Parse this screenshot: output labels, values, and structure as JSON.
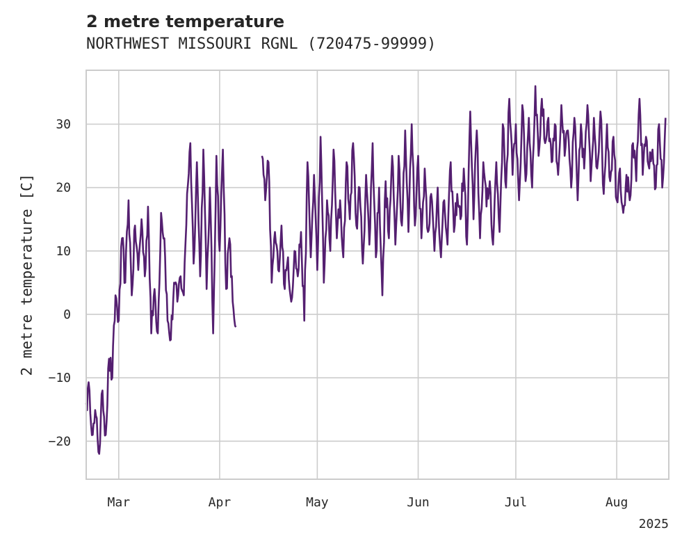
{
  "chart_data": {
    "type": "line",
    "title": "2 metre temperature",
    "subtitle": "NORTHWEST MISSOURI RGNL (720475-99999)",
    "ylabel": "2 metre temperature [C]",
    "xlabel": "",
    "year_label": "2025",
    "x_range": [
      "2025-02-19",
      "2025-08-17"
    ],
    "ylim": [
      -26,
      38.5
    ],
    "yticks": [
      -20,
      -10,
      0,
      10,
      20,
      30
    ],
    "xticks": [
      {
        "date": "2025-03-01",
        "label": "Mar"
      },
      {
        "date": "2025-04-01",
        "label": "Apr"
      },
      {
        "date": "2025-05-01",
        "label": "May"
      },
      {
        "date": "2025-06-01",
        "label": "Jun"
      },
      {
        "date": "2025-07-01",
        "label": "Jul"
      },
      {
        "date": "2025-08-01",
        "label": "Aug"
      }
    ],
    "grid": true,
    "line_color": "#541f70",
    "series": [
      {
        "segments": [
          [
            [
              "2025-02-19",
              -14
            ],
            [
              "2025-02-20",
              -12
            ],
            [
              "2025-02-21",
              -19
            ],
            [
              "2025-02-22",
              -16
            ],
            [
              "2025-02-23",
              -22
            ],
            [
              "2025-02-24",
              -12
            ],
            [
              "2025-02-25",
              -19
            ],
            [
              "2025-02-26",
              -7
            ],
            [
              "2025-02-27",
              -10
            ],
            [
              "2025-02-28",
              3
            ],
            [
              "2025-03-01",
              -1
            ],
            [
              "2025-03-02",
              12
            ],
            [
              "2025-03-03",
              5
            ],
            [
              "2025-03-04",
              18
            ],
            [
              "2025-03-05",
              3
            ],
            [
              "2025-03-06",
              14
            ],
            [
              "2025-03-07",
              7
            ],
            [
              "2025-03-08",
              15
            ],
            [
              "2025-03-09",
              6
            ],
            [
              "2025-03-10",
              17
            ],
            [
              "2025-03-11",
              -3
            ],
            [
              "2025-03-12",
              4
            ],
            [
              "2025-03-13",
              -3
            ],
            [
              "2025-03-14",
              16
            ],
            [
              "2025-03-15",
              12
            ],
            [
              "2025-03-16",
              -1
            ],
            [
              "2025-03-17",
              -4
            ],
            [
              "2025-03-18",
              5
            ],
            [
              "2025-03-19",
              2
            ],
            [
              "2025-03-20",
              6
            ],
            [
              "2025-03-21",
              3
            ],
            [
              "2025-03-22",
              19
            ],
            [
              "2025-03-23",
              27
            ],
            [
              "2025-03-24",
              8
            ],
            [
              "2025-03-25",
              24
            ],
            [
              "2025-03-26",
              6
            ],
            [
              "2025-03-27",
              26
            ],
            [
              "2025-03-28",
              4
            ],
            [
              "2025-03-29",
              20
            ],
            [
              "2025-03-30",
              -3
            ],
            [
              "2025-03-31",
              25
            ],
            [
              "2025-04-01",
              10
            ],
            [
              "2025-04-02",
              26
            ],
            [
              "2025-04-03",
              4
            ],
            [
              "2025-04-04",
              12
            ],
            [
              "2025-04-05",
              2
            ],
            [
              "2025-04-06",
              -2
            ]
          ],
          [
            [
              "2025-04-14",
              25
            ],
            [
              "2025-04-15",
              18
            ],
            [
              "2025-04-16",
              24
            ],
            [
              "2025-04-17",
              5
            ],
            [
              "2025-04-18",
              13
            ],
            [
              "2025-04-19",
              7
            ],
            [
              "2025-04-20",
              14
            ],
            [
              "2025-04-21",
              4
            ],
            [
              "2025-04-22",
              9
            ],
            [
              "2025-04-23",
              2
            ],
            [
              "2025-04-24",
              10
            ],
            [
              "2025-04-25",
              6
            ],
            [
              "2025-04-26",
              13
            ],
            [
              "2025-04-27",
              -1
            ],
            [
              "2025-04-28",
              24
            ],
            [
              "2025-04-29",
              9
            ],
            [
              "2025-04-30",
              22
            ],
            [
              "2025-05-01",
              7
            ],
            [
              "2025-05-02",
              28
            ],
            [
              "2025-05-03",
              5
            ],
            [
              "2025-05-04",
              18
            ],
            [
              "2025-05-05",
              10
            ],
            [
              "2025-05-06",
              26
            ],
            [
              "2025-05-07",
              12
            ],
            [
              "2025-05-08",
              18
            ],
            [
              "2025-05-09",
              9
            ],
            [
              "2025-05-10",
              24
            ],
            [
              "2025-05-11",
              15
            ],
            [
              "2025-05-12",
              27
            ],
            [
              "2025-05-13",
              14
            ],
            [
              "2025-05-14",
              20
            ],
            [
              "2025-05-15",
              8
            ],
            [
              "2025-05-16",
              22
            ],
            [
              "2025-05-17",
              11
            ],
            [
              "2025-05-18",
              27
            ],
            [
              "2025-05-19",
              9
            ],
            [
              "2025-05-20",
              20
            ],
            [
              "2025-05-21",
              3
            ],
            [
              "2025-05-22",
              21
            ],
            [
              "2025-05-23",
              12
            ],
            [
              "2025-05-24",
              25
            ],
            [
              "2025-05-25",
              11
            ],
            [
              "2025-05-26",
              25
            ],
            [
              "2025-05-27",
              14
            ],
            [
              "2025-05-28",
              29
            ],
            [
              "2025-05-29",
              13
            ],
            [
              "2025-05-30",
              30
            ],
            [
              "2025-05-31",
              14
            ],
            [
              "2025-06-01",
              25
            ],
            [
              "2025-06-02",
              12
            ],
            [
              "2025-06-03",
              23
            ],
            [
              "2025-06-04",
              13
            ],
            [
              "2025-06-05",
              19
            ],
            [
              "2025-06-06",
              10
            ],
            [
              "2025-06-07",
              20
            ],
            [
              "2025-06-08",
              9
            ],
            [
              "2025-06-09",
              18
            ],
            [
              "2025-06-10",
              11
            ],
            [
              "2025-06-11",
              24
            ],
            [
              "2025-06-12",
              13
            ],
            [
              "2025-06-13",
              19
            ],
            [
              "2025-06-14",
              15
            ],
            [
              "2025-06-15",
              23
            ],
            [
              "2025-06-16",
              11
            ],
            [
              "2025-06-17",
              32
            ],
            [
              "2025-06-18",
              15
            ],
            [
              "2025-06-19",
              29
            ],
            [
              "2025-06-20",
              12
            ],
            [
              "2025-06-21",
              24
            ],
            [
              "2025-06-22",
              17
            ],
            [
              "2025-06-23",
              21
            ],
            [
              "2025-06-24",
              11
            ],
            [
              "2025-06-25",
              24
            ],
            [
              "2025-06-26",
              13
            ],
            [
              "2025-06-27",
              30
            ],
            [
              "2025-06-28",
              20
            ],
            [
              "2025-06-29",
              34
            ],
            [
              "2025-06-30",
              22
            ],
            [
              "2025-07-01",
              30
            ],
            [
              "2025-07-02",
              18
            ],
            [
              "2025-07-03",
              33
            ],
            [
              "2025-07-04",
              21
            ],
            [
              "2025-07-05",
              31
            ],
            [
              "2025-07-06",
              20
            ],
            [
              "2025-07-07",
              36
            ],
            [
              "2025-07-08",
              25
            ],
            [
              "2025-07-09",
              34
            ],
            [
              "2025-07-10",
              27
            ],
            [
              "2025-07-11",
              31
            ],
            [
              "2025-07-12",
              24
            ],
            [
              "2025-07-13",
              30
            ],
            [
              "2025-07-14",
              22
            ],
            [
              "2025-07-15",
              33
            ],
            [
              "2025-07-16",
              25
            ],
            [
              "2025-07-17",
              29
            ],
            [
              "2025-07-18",
              20
            ],
            [
              "2025-07-19",
              31
            ],
            [
              "2025-07-20",
              18
            ],
            [
              "2025-07-21",
              30
            ],
            [
              "2025-07-22",
              23
            ],
            [
              "2025-07-23",
              33
            ],
            [
              "2025-07-24",
              21
            ],
            [
              "2025-07-25",
              31
            ],
            [
              "2025-07-26",
              23
            ],
            [
              "2025-07-27",
              32
            ],
            [
              "2025-07-28",
              19
            ],
            [
              "2025-07-29",
              30
            ],
            [
              "2025-07-30",
              21
            ],
            [
              "2025-07-31",
              28
            ],
            [
              "2025-08-01",
              18
            ],
            [
              "2025-08-02",
              23
            ],
            [
              "2025-08-03",
              16
            ],
            [
              "2025-08-04",
              22
            ],
            [
              "2025-08-05",
              18
            ],
            [
              "2025-08-06",
              27
            ],
            [
              "2025-08-07",
              21
            ],
            [
              "2025-08-08",
              34
            ],
            [
              "2025-08-09",
              22
            ],
            [
              "2025-08-10",
              28
            ],
            [
              "2025-08-11",
              23
            ],
            [
              "2025-08-12",
              26
            ],
            [
              "2025-08-13",
              20
            ],
            [
              "2025-08-14",
              30
            ],
            [
              "2025-08-15",
              20
            ],
            [
              "2025-08-16",
              31
            ]
          ]
        ]
      }
    ]
  }
}
